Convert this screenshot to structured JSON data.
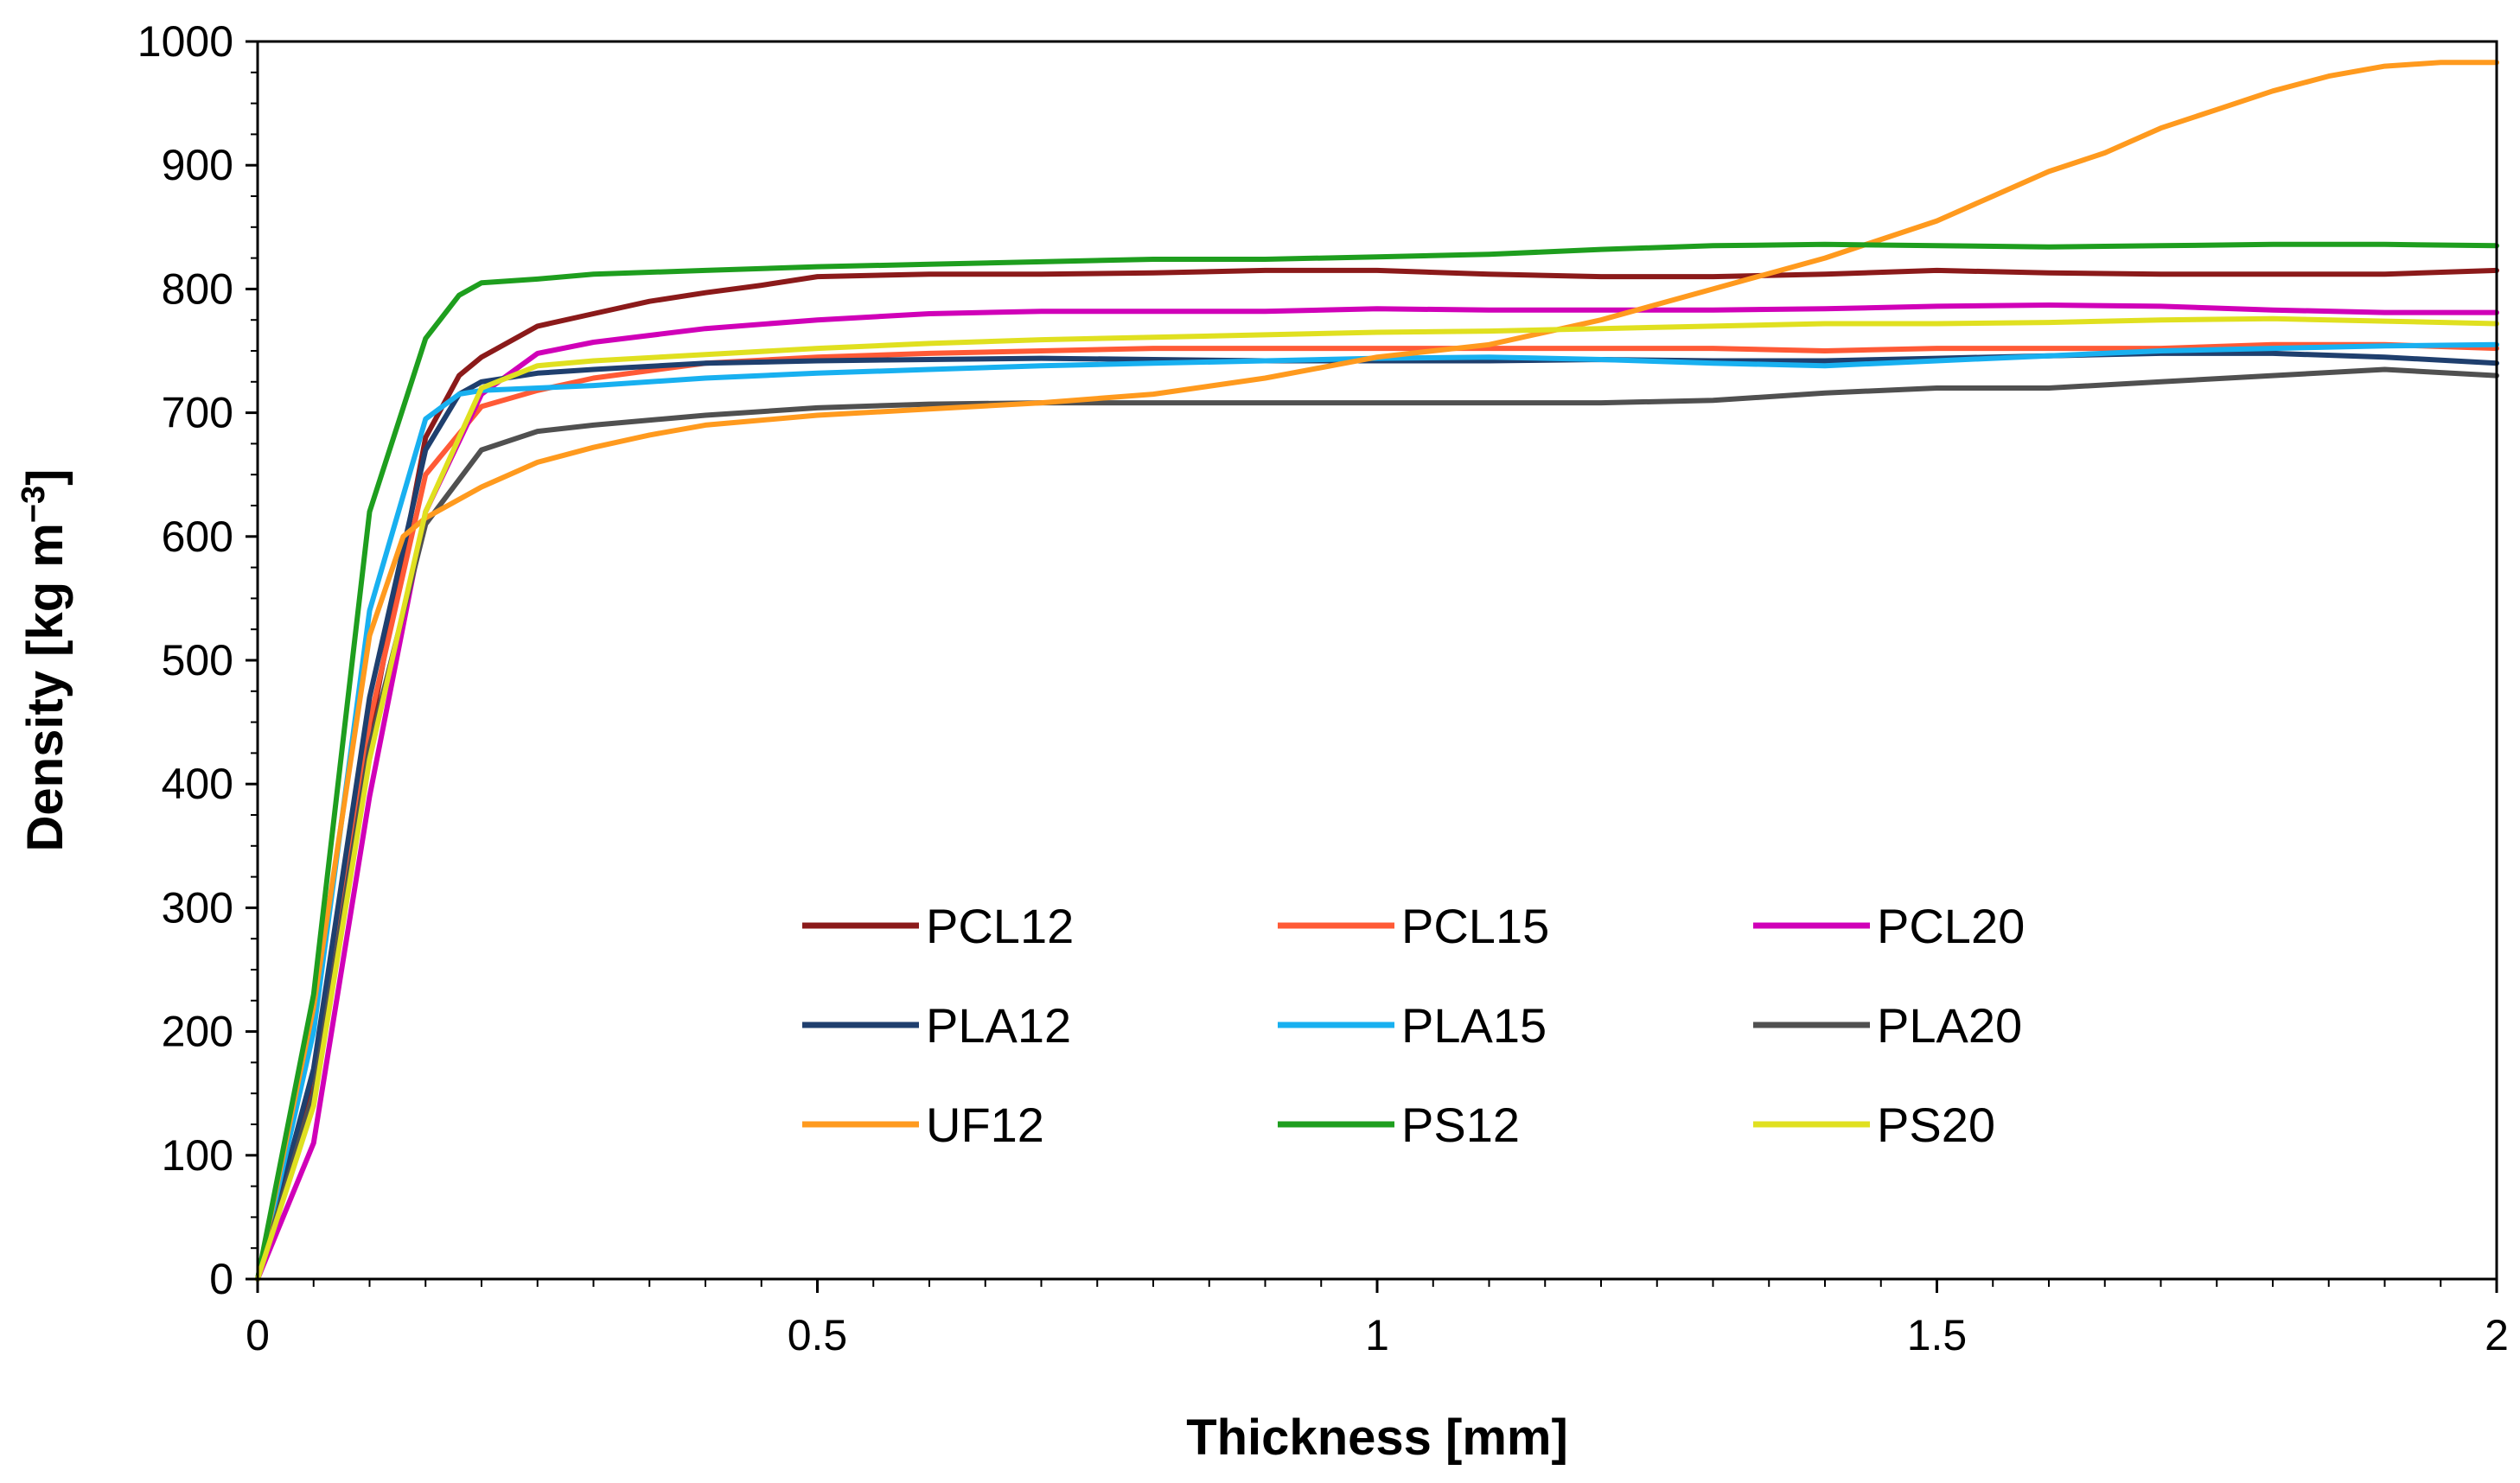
{
  "chart_data": {
    "type": "line",
    "title": "",
    "xlabel": "Thickness [mm]",
    "ylabel": "Density [kg m",
    "ylabel_sup": "−3",
    "ylabel_end": "]",
    "xlim": [
      0,
      2
    ],
    "ylim": [
      0,
      1000
    ],
    "x_ticks": [
      0,
      0.5,
      1,
      1.5,
      2
    ],
    "x_tick_labels": [
      "0",
      "0.5",
      "1",
      "1.5",
      "2"
    ],
    "y_ticks": [
      0,
      100,
      200,
      300,
      400,
      500,
      600,
      700,
      800,
      900,
      1000
    ],
    "y_tick_labels": [
      "0",
      "100",
      "200",
      "300",
      "400",
      "500",
      "600",
      "700",
      "800",
      "900",
      "1000"
    ],
    "grid": false,
    "legend": "center, 3 columns",
    "series": [
      {
        "name": "PCL12",
        "color": "#8B1A1A",
        "x": [
          0,
          0.05,
          0.1,
          0.15,
          0.18,
          0.2,
          0.25,
          0.3,
          0.35,
          0.4,
          0.45,
          0.5,
          0.6,
          0.7,
          0.8,
          0.9,
          1.0,
          1.1,
          1.2,
          1.3,
          1.4,
          1.5,
          1.6,
          1.7,
          1.8,
          1.9,
          2.0
        ],
        "y": [
          0,
          160,
          440,
          680,
          730,
          745,
          770,
          780,
          790,
          797,
          803,
          810,
          812,
          812,
          813,
          815,
          815,
          812,
          810,
          810,
          812,
          815,
          813,
          812,
          812,
          812,
          815
        ]
      },
      {
        "name": "PCL15",
        "color": "#FF5A36",
        "x": [
          0,
          0.05,
          0.1,
          0.15,
          0.2,
          0.25,
          0.3,
          0.4,
          0.5,
          0.6,
          0.7,
          0.8,
          0.9,
          1.0,
          1.1,
          1.2,
          1.3,
          1.4,
          1.5,
          1.6,
          1.7,
          1.8,
          1.9,
          2.0
        ],
        "y": [
          0,
          150,
          450,
          650,
          705,
          718,
          728,
          740,
          745,
          748,
          750,
          752,
          752,
          752,
          752,
          752,
          752,
          750,
          752,
          752,
          752,
          755,
          755,
          752
        ]
      },
      {
        "name": "PCL20",
        "color": "#D000B8",
        "x": [
          0,
          0.05,
          0.1,
          0.15,
          0.2,
          0.25,
          0.3,
          0.4,
          0.5,
          0.6,
          0.7,
          0.8,
          0.9,
          1.0,
          1.1,
          1.2,
          1.3,
          1.4,
          1.5,
          1.6,
          1.7,
          1.8,
          1.9,
          2.0
        ],
        "y": [
          0,
          110,
          390,
          620,
          715,
          748,
          757,
          768,
          775,
          780,
          782,
          782,
          782,
          784,
          783,
          783,
          783,
          784,
          786,
          787,
          786,
          783,
          781,
          781
        ]
      },
      {
        "name": "PLA12",
        "color": "#1F3F6E",
        "x": [
          0,
          0.05,
          0.1,
          0.15,
          0.18,
          0.2,
          0.25,
          0.3,
          0.4,
          0.5,
          0.6,
          0.7,
          0.8,
          0.9,
          1.0,
          1.1,
          1.2,
          1.3,
          1.4,
          1.5,
          1.6,
          1.7,
          1.8,
          1.9,
          2.0
        ],
        "y": [
          0,
          170,
          470,
          670,
          715,
          725,
          732,
          735,
          740,
          742,
          743,
          744,
          743,
          742,
          742,
          742,
          743,
          742,
          742,
          744,
          746,
          748,
          748,
          745,
          740
        ]
      },
      {
        "name": "PLA15",
        "color": "#18B0F0",
        "x": [
          0,
          0.05,
          0.1,
          0.15,
          0.18,
          0.2,
          0.25,
          0.3,
          0.4,
          0.5,
          0.6,
          0.7,
          0.8,
          0.9,
          1.0,
          1.1,
          1.2,
          1.3,
          1.4,
          1.5,
          1.6,
          1.7,
          1.8,
          1.9,
          2.0
        ],
        "y": [
          0,
          200,
          540,
          695,
          715,
          718,
          720,
          722,
          728,
          732,
          735,
          738,
          740,
          742,
          744,
          745,
          743,
          740,
          738,
          742,
          746,
          750,
          752,
          754,
          755
        ]
      },
      {
        "name": "PLA20",
        "color": "#505050",
        "x": [
          0,
          0.05,
          0.1,
          0.15,
          0.2,
          0.25,
          0.3,
          0.4,
          0.5,
          0.6,
          0.7,
          0.8,
          0.9,
          1.0,
          1.1,
          1.2,
          1.3,
          1.4,
          1.5,
          1.6,
          1.7,
          1.8,
          1.9,
          2.0
        ],
        "y": [
          0,
          150,
          430,
          610,
          670,
          685,
          690,
          698,
          704,
          707,
          708,
          708,
          708,
          708,
          708,
          708,
          710,
          716,
          720,
          720,
          725,
          730,
          735,
          730
        ]
      },
      {
        "name": "UF12",
        "color": "#FF9A1E",
        "x": [
          0,
          0.05,
          0.1,
          0.13,
          0.15,
          0.2,
          0.25,
          0.3,
          0.35,
          0.4,
          0.5,
          0.6,
          0.7,
          0.8,
          0.9,
          1.0,
          1.1,
          1.2,
          1.3,
          1.4,
          1.5,
          1.55,
          1.6,
          1.65,
          1.7,
          1.75,
          1.8,
          1.85,
          1.9,
          1.95,
          2.0
        ],
        "y": [
          0,
          220,
          520,
          600,
          615,
          640,
          660,
          672,
          682,
          690,
          698,
          703,
          708,
          715,
          728,
          745,
          755,
          775,
          800,
          825,
          855,
          875,
          895,
          910,
          930,
          945,
          960,
          972,
          980,
          983,
          983
        ]
      },
      {
        "name": "PS12",
        "color": "#1E9E1E",
        "x": [
          0,
          0.05,
          0.1,
          0.15,
          0.18,
          0.2,
          0.25,
          0.3,
          0.4,
          0.5,
          0.6,
          0.7,
          0.8,
          0.9,
          1.0,
          1.1,
          1.2,
          1.3,
          1.4,
          1.5,
          1.6,
          1.7,
          1.8,
          1.9,
          2.0
        ],
        "y": [
          0,
          230,
          620,
          760,
          795,
          805,
          808,
          812,
          815,
          818,
          820,
          822,
          824,
          824,
          826,
          828,
          832,
          835,
          836,
          835,
          834,
          835,
          836,
          836,
          835
        ]
      },
      {
        "name": "PS20",
        "color": "#E0E020",
        "x": [
          0,
          0.05,
          0.1,
          0.15,
          0.2,
          0.25,
          0.3,
          0.4,
          0.5,
          0.6,
          0.7,
          0.8,
          0.9,
          1.0,
          1.1,
          1.2,
          1.3,
          1.4,
          1.5,
          1.6,
          1.7,
          1.8,
          1.9,
          2.0
        ],
        "y": [
          0,
          140,
          420,
          620,
          720,
          738,
          742,
          747,
          752,
          756,
          759,
          761,
          763,
          765,
          766,
          768,
          770,
          772,
          772,
          773,
          775,
          776,
          774,
          772
        ]
      }
    ]
  }
}
